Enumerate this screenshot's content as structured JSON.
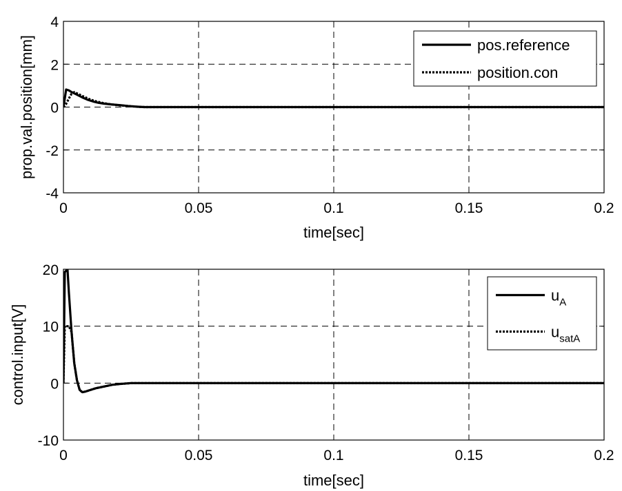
{
  "chart_data": [
    {
      "type": "line",
      "xlabel": "time[sec]",
      "ylabel": "prop.val.position[mm]",
      "xlim": [
        0,
        0.2
      ],
      "ylim": [
        -4,
        4
      ],
      "xticks": [
        0,
        0.05,
        0.1,
        0.15,
        0.2
      ],
      "xtick_labels": [
        "0",
        "0.05",
        "0.1",
        "0.15",
        "0.2"
      ],
      "yticks": [
        -4,
        -2,
        0,
        2,
        4
      ],
      "ytick_labels": [
        "-4",
        "-2",
        "0",
        "2",
        "4"
      ],
      "grid": true,
      "legend_position": "top-right",
      "series": [
        {
          "name": "pos.reference",
          "style": "solid",
          "color": "#000000",
          "x": [
            0,
            0.0005,
            0.001,
            0.002,
            0.003,
            0.005,
            0.007,
            0.009,
            0.011,
            0.013,
            0.015,
            0.018,
            0.021,
            0.024,
            0.027,
            0.03,
            0.05,
            0.1,
            0.15,
            0.2
          ],
          "y": [
            0,
            0.4,
            0.82,
            0.78,
            0.7,
            0.58,
            0.45,
            0.34,
            0.26,
            0.2,
            0.16,
            0.12,
            0.09,
            0.05,
            0.02,
            0,
            0,
            0,
            0,
            0
          ]
        },
        {
          "name": "position.con",
          "style": "dotted",
          "color": "#000000",
          "x": [
            0,
            0.001,
            0.002,
            0.003,
            0.004,
            0.006,
            0.008,
            0.01,
            0.012,
            0.015,
            0.018,
            0.021,
            0.024,
            0.027,
            0.03,
            0.05,
            0.1,
            0.15,
            0.2
          ],
          "y": [
            0,
            0.15,
            0.4,
            0.62,
            0.7,
            0.58,
            0.46,
            0.35,
            0.27,
            0.18,
            0.12,
            0.08,
            0.05,
            0.02,
            0,
            0,
            0,
            0,
            0
          ]
        }
      ]
    },
    {
      "type": "line",
      "xlabel": "time[sec]",
      "ylabel": "control.input[V]",
      "xlim": [
        0,
        0.2
      ],
      "ylim": [
        -10,
        20
      ],
      "xticks": [
        0,
        0.05,
        0.1,
        0.15,
        0.2
      ],
      "xtick_labels": [
        "0",
        "0.05",
        "0.1",
        "0.15",
        "0.2"
      ],
      "yticks": [
        -10,
        0,
        10,
        20
      ],
      "ytick_labels": [
        "-10",
        "0",
        "10",
        "20"
      ],
      "grid": true,
      "legend_position": "top-right",
      "series": [
        {
          "name": "u",
          "name_sub": "A",
          "style": "solid",
          "color": "#000000",
          "x": [
            0,
            0.0005,
            0.0015,
            0.002,
            0.003,
            0.004,
            0.005,
            0.006,
            0.007,
            0.008,
            0.01,
            0.012,
            0.015,
            0.018,
            0.021,
            0.025,
            0.03,
            0.05,
            0.1,
            0.15,
            0.2
          ],
          "y": [
            0,
            19.5,
            20,
            16,
            9,
            3.5,
            0.5,
            -1.2,
            -1.6,
            -1.5,
            -1.2,
            -0.9,
            -0.6,
            -0.3,
            -0.15,
            0,
            0,
            0,
            0,
            0,
            0
          ]
        },
        {
          "name": "u",
          "name_sub": "satA",
          "style": "dotted",
          "color": "#000000",
          "x": [
            0,
            0.0005,
            0.001,
            0.0015,
            0.002,
            0.003,
            0.004,
            0.005,
            0.006,
            0.007,
            0.008,
            0.01,
            0.012,
            0.015,
            0.018,
            0.021,
            0.025,
            0.03,
            0.05,
            0.1,
            0.15,
            0.2
          ],
          "y": [
            0,
            10,
            10,
            10,
            10,
            9,
            3.5,
            0.5,
            -1.2,
            -1.6,
            -1.5,
            -1.2,
            -0.9,
            -0.6,
            -0.3,
            -0.15,
            0,
            0,
            0,
            0,
            0,
            0
          ]
        }
      ]
    }
  ]
}
